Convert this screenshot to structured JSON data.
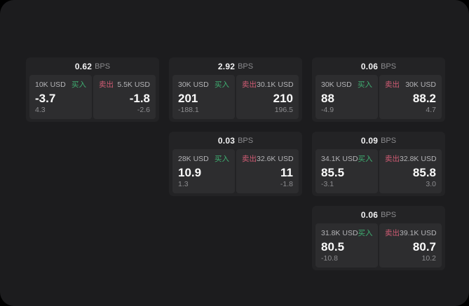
{
  "colors": {
    "buy_green": "#3fae71",
    "sell_red": "#d05c74",
    "page_background": "#000000",
    "window_background": "#1c1c1e",
    "card_background": "#232325",
    "panel_background": "#2d2d2f"
  },
  "labels": {
    "bps_unit": "BPS",
    "buy": "买入",
    "sell": "卖出"
  },
  "cards": [
    {
      "bps": "0.62",
      "buy": {
        "size": "10K USD",
        "value": "-3.7",
        "sub": "4.3"
      },
      "sell": {
        "size": "5.5K USD",
        "value": "-1.8",
        "sub": "-2.6"
      }
    },
    {
      "bps": "2.92",
      "buy": {
        "size": "30K USD",
        "value": "201",
        "sub": "-188.1"
      },
      "sell": {
        "size": "30.1K USD",
        "value": "210",
        "sub": "196.5"
      }
    },
    {
      "bps": "0.06",
      "buy": {
        "size": "30K USD",
        "value": "88",
        "sub": "-4.9"
      },
      "sell": {
        "size": "30K USD",
        "value": "88.2",
        "sub": "4.7"
      }
    },
    {
      "bps": "0.03",
      "buy": {
        "size": "28K USD",
        "value": "10.9",
        "sub": "1.3"
      },
      "sell": {
        "size": "32.6K USD",
        "value": "11",
        "sub": "-1.8"
      }
    },
    {
      "bps": "0.09",
      "buy": {
        "size": "34.1K USD",
        "value": "85.5",
        "sub": "-3.1"
      },
      "sell": {
        "size": "32.8K USD",
        "value": "85.8",
        "sub": "3.0"
      }
    },
    {
      "bps": "0.06",
      "buy": {
        "size": "31.8K USD",
        "value": "80.5",
        "sub": "-10.8"
      },
      "sell": {
        "size": "39.1K USD",
        "value": "80.7",
        "sub": "10.2"
      }
    }
  ]
}
